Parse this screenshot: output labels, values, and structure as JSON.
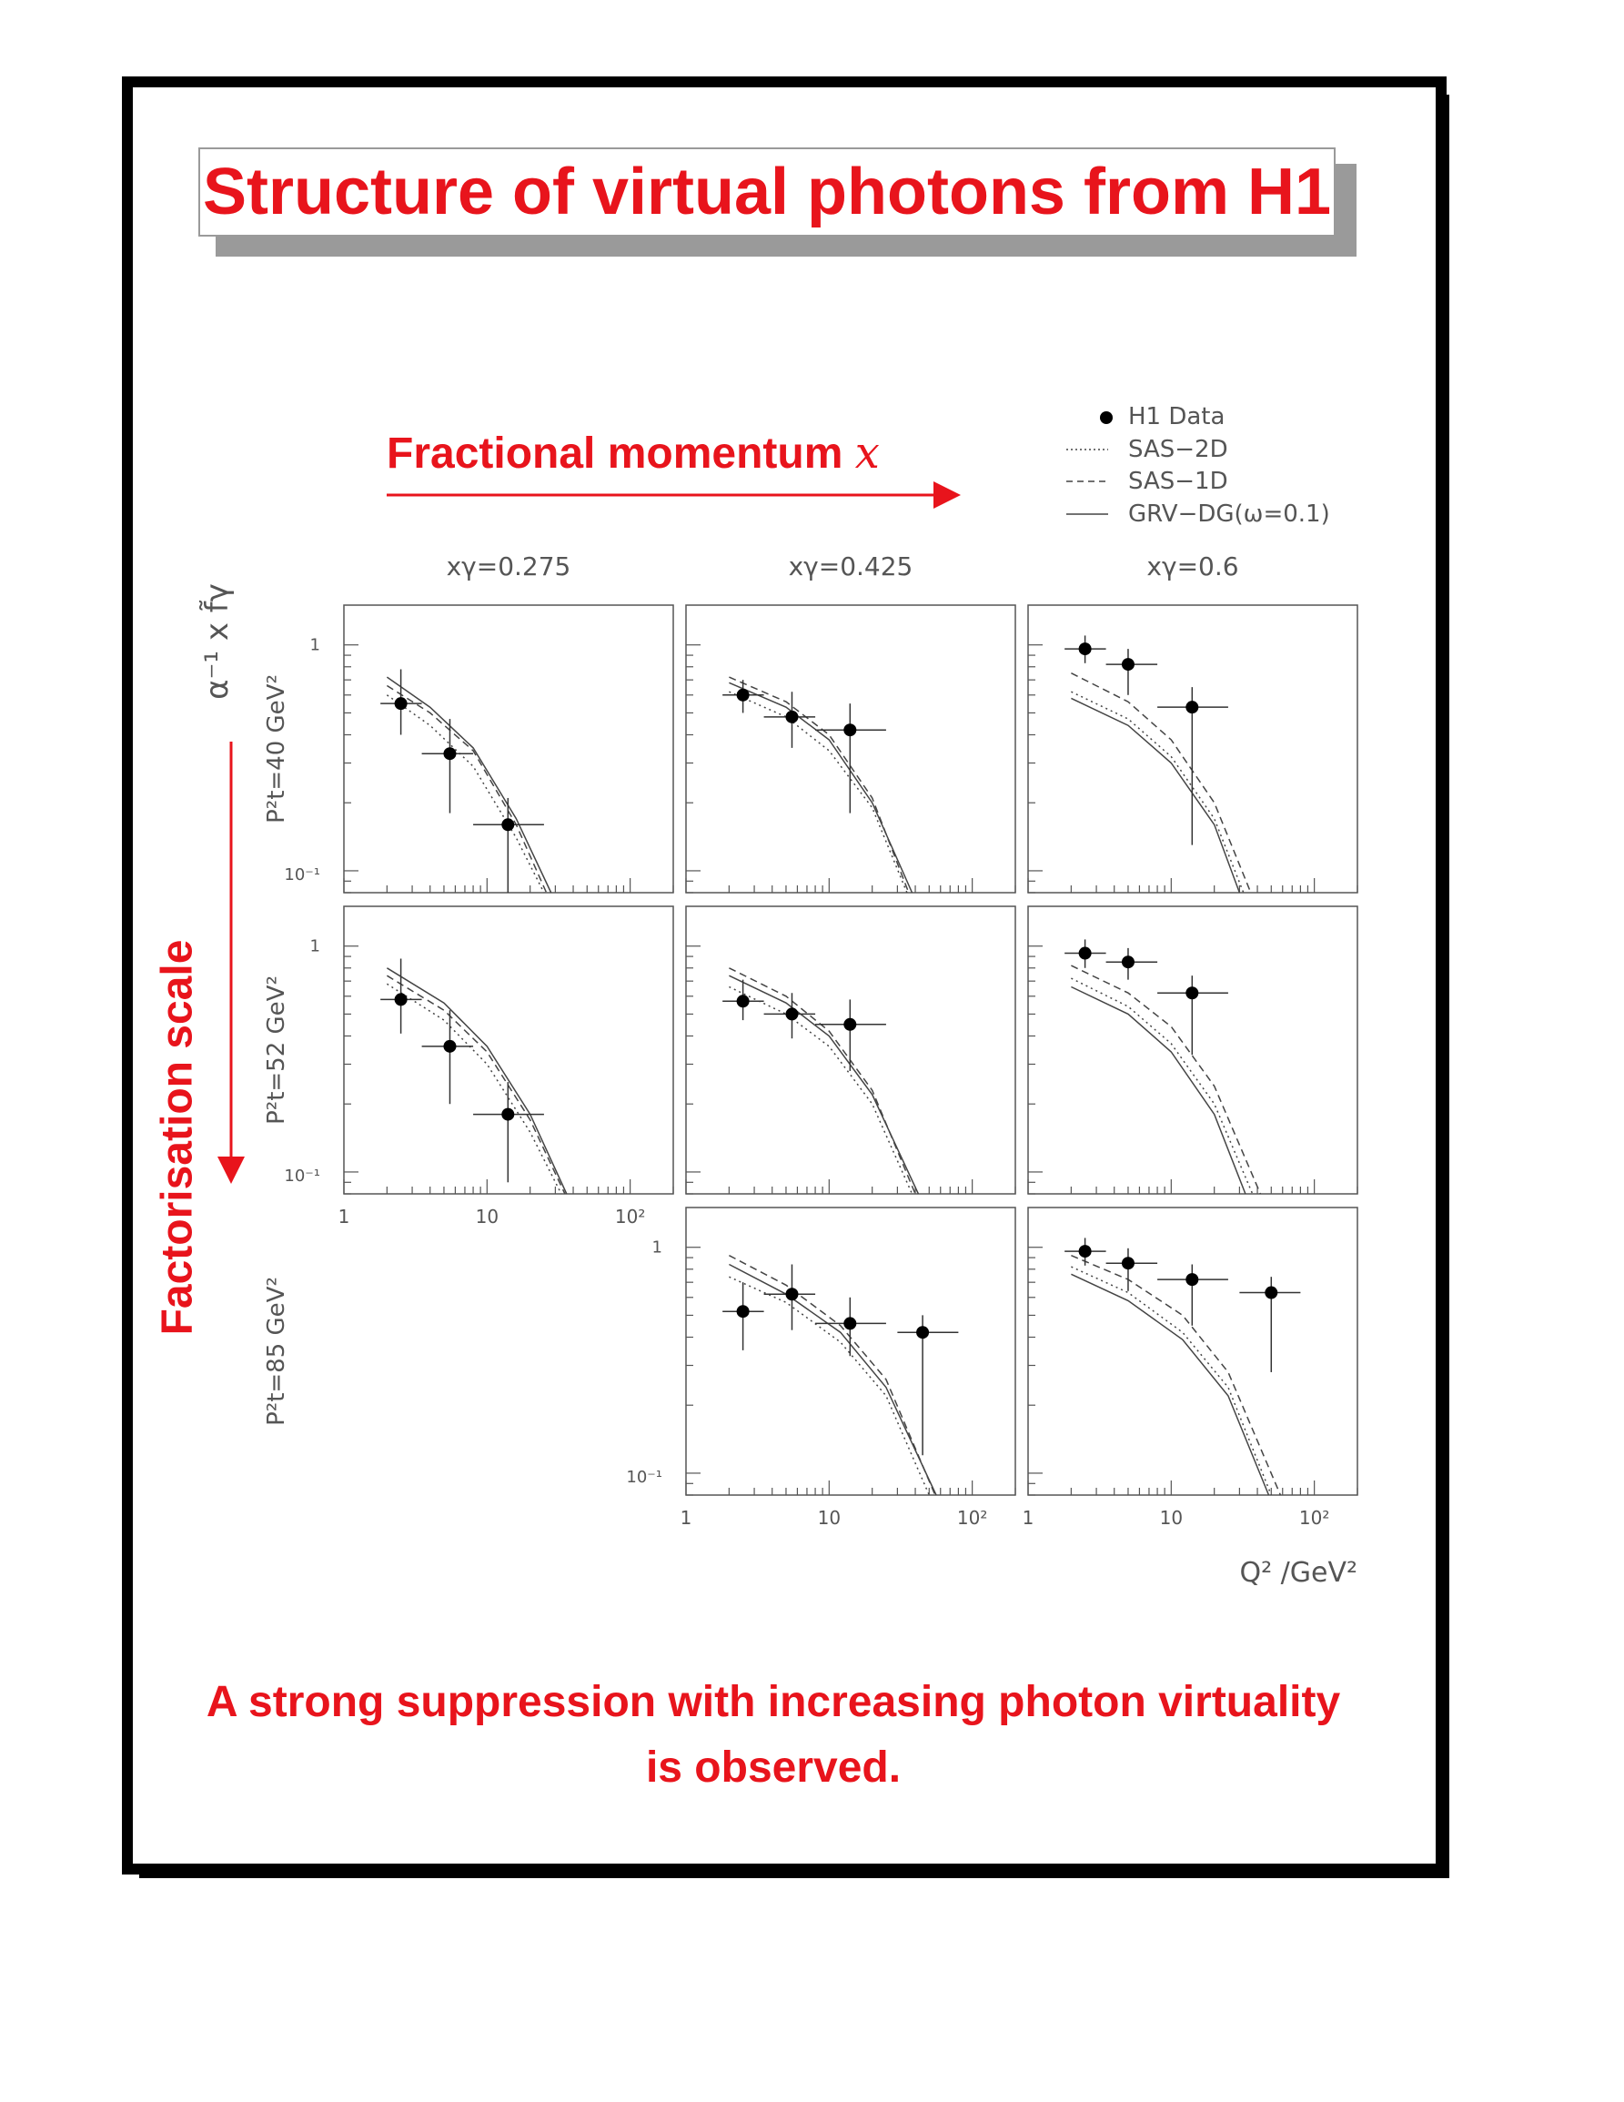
{
  "title": "Structure of virtual photons from H1",
  "x_direction_label": "Fractional momentum",
  "x_direction_symbol": "x",
  "y_direction_label": "Factorisation scale",
  "conclusion": [
    "A strong suppression with increasing photon virtuality",
    "is observed."
  ],
  "colors": {
    "accent": "#e8141c",
    "plot": "#555555"
  },
  "chart_data": {
    "type": "scatter",
    "y_axis_label": "α⁻¹ x f̃γ",
    "x_axis_label": "Q² /GeV²",
    "x_scale": "log",
    "y_scale": "log",
    "xlim": [
      1,
      200
    ],
    "ylim": [
      0.08,
      1.5
    ],
    "x_ticks": [
      "1",
      "10",
      "10²"
    ],
    "y_ticks": [
      "1",
      "10⁻¹"
    ],
    "columns": [
      "xγ=0.275",
      "xγ=0.425",
      "xγ=0.6"
    ],
    "rows": [
      "P²t=40 GeV²",
      "P²t=52 GeV²",
      "P²t=85 GeV²"
    ],
    "legend": {
      "placement": "top-right",
      "entries": [
        {
          "label": "H1 Data",
          "style": "point"
        },
        {
          "label": "SAS−2D",
          "style": "dotted"
        },
        {
          "label": "SAS−1D",
          "style": "dashed"
        },
        {
          "label": "GRV−DG(ω=0.1)",
          "style": "solid"
        }
      ]
    },
    "panels": [
      {
        "row": 0,
        "col": 0,
        "points": [
          {
            "x": 2.5,
            "y": 0.55,
            "xlo": 1.8,
            "xhi": 3.5,
            "ylo": 0.4,
            "yhi": 0.78
          },
          {
            "x": 5.5,
            "y": 0.33,
            "xlo": 3.5,
            "xhi": 8.0,
            "ylo": 0.18,
            "yhi": 0.47
          },
          {
            "x": 14,
            "y": 0.16,
            "xlo": 8.0,
            "xhi": 25,
            "ylo": 0.075,
            "yhi": 0.21
          }
        ],
        "curves": {
          "dotted": [
            [
              2,
              0.6
            ],
            [
              4,
              0.44
            ],
            [
              8,
              0.29
            ],
            [
              16,
              0.14
            ],
            [
              25,
              0.07
            ]
          ],
          "dashed": [
            [
              2,
              0.66
            ],
            [
              4,
              0.5
            ],
            [
              8,
              0.34
            ],
            [
              16,
              0.16
            ],
            [
              26,
              0.07
            ]
          ],
          "solid": [
            [
              2,
              0.72
            ],
            [
              4,
              0.53
            ],
            [
              8,
              0.35
            ],
            [
              16,
              0.17
            ],
            [
              28,
              0.07
            ]
          ]
        }
      },
      {
        "row": 0,
        "col": 1,
        "points": [
          {
            "x": 2.5,
            "y": 0.6,
            "xlo": 1.8,
            "xhi": 3.5,
            "ylo": 0.5,
            "yhi": 0.7
          },
          {
            "x": 5.5,
            "y": 0.48,
            "xlo": 3.5,
            "xhi": 8.0,
            "ylo": 0.35,
            "yhi": 0.62
          },
          {
            "x": 14,
            "y": 0.42,
            "xlo": 8.0,
            "xhi": 25,
            "ylo": 0.18,
            "yhi": 0.55
          }
        ],
        "curves": {
          "dotted": [
            [
              2,
              0.62
            ],
            [
              5,
              0.48
            ],
            [
              10,
              0.34
            ],
            [
              20,
              0.19
            ],
            [
              35,
              0.07
            ]
          ],
          "dashed": [
            [
              2,
              0.72
            ],
            [
              5,
              0.56
            ],
            [
              10,
              0.4
            ],
            [
              20,
              0.21
            ],
            [
              36,
              0.07
            ]
          ],
          "solid": [
            [
              2,
              0.68
            ],
            [
              5,
              0.53
            ],
            [
              10,
              0.38
            ],
            [
              20,
              0.2
            ],
            [
              38,
              0.07
            ]
          ]
        }
      },
      {
        "row": 0,
        "col": 2,
        "points": [
          {
            "x": 2.5,
            "y": 0.96,
            "xlo": 1.8,
            "xhi": 3.5,
            "ylo": 0.83,
            "yhi": 1.1
          },
          {
            "x": 5.0,
            "y": 0.82,
            "xlo": 3.5,
            "xhi": 8.0,
            "ylo": 0.6,
            "yhi": 0.96
          },
          {
            "x": 14,
            "y": 0.53,
            "xlo": 8.0,
            "xhi": 25,
            "ylo": 0.13,
            "yhi": 0.65
          }
        ],
        "curves": {
          "dotted": [
            [
              2,
              0.62
            ],
            [
              5,
              0.47
            ],
            [
              10,
              0.32
            ],
            [
              20,
              0.17
            ],
            [
              32,
              0.07
            ]
          ],
          "dashed": [
            [
              2,
              0.75
            ],
            [
              5,
              0.56
            ],
            [
              10,
              0.38
            ],
            [
              20,
              0.2
            ],
            [
              36,
              0.07
            ]
          ],
          "solid": [
            [
              2,
              0.58
            ],
            [
              5,
              0.44
            ],
            [
              10,
              0.3
            ],
            [
              20,
              0.16
            ],
            [
              30,
              0.07
            ]
          ]
        }
      },
      {
        "row": 1,
        "col": 0,
        "points": [
          {
            "x": 2.5,
            "y": 0.58,
            "xlo": 1.8,
            "xhi": 3.5,
            "ylo": 0.41,
            "yhi": 0.88
          },
          {
            "x": 5.5,
            "y": 0.36,
            "xlo": 3.5,
            "xhi": 8.0,
            "ylo": 0.2,
            "yhi": 0.52
          },
          {
            "x": 14,
            "y": 0.18,
            "xlo": 8.0,
            "xhi": 25,
            "ylo": 0.09,
            "yhi": 0.25
          }
        ],
        "curves": {
          "dotted": [
            [
              2,
              0.68
            ],
            [
              5,
              0.47
            ],
            [
              10,
              0.3
            ],
            [
              20,
              0.15
            ],
            [
              33,
              0.07
            ]
          ],
          "dashed": [
            [
              2,
              0.74
            ],
            [
              5,
              0.52
            ],
            [
              10,
              0.34
            ],
            [
              20,
              0.17
            ],
            [
              35,
              0.07
            ]
          ],
          "solid": [
            [
              2,
              0.8
            ],
            [
              5,
              0.56
            ],
            [
              10,
              0.36
            ],
            [
              20,
              0.18
            ],
            [
              36,
              0.07
            ]
          ]
        }
      },
      {
        "row": 1,
        "col": 1,
        "points": [
          {
            "x": 2.5,
            "y": 0.57,
            "xlo": 1.8,
            "xhi": 3.5,
            "ylo": 0.47,
            "yhi": 0.71
          },
          {
            "x": 5.5,
            "y": 0.5,
            "xlo": 3.5,
            "xhi": 8.0,
            "ylo": 0.39,
            "yhi": 0.62
          },
          {
            "x": 14,
            "y": 0.45,
            "xlo": 8.0,
            "xhi": 25,
            "ylo": 0.28,
            "yhi": 0.58
          }
        ],
        "curves": {
          "dotted": [
            [
              2,
              0.66
            ],
            [
              5,
              0.5
            ],
            [
              10,
              0.36
            ],
            [
              20,
              0.2
            ],
            [
              38,
              0.07
            ]
          ],
          "dashed": [
            [
              2,
              0.8
            ],
            [
              5,
              0.6
            ],
            [
              10,
              0.42
            ],
            [
              20,
              0.23
            ],
            [
              40,
              0.07
            ]
          ],
          "solid": [
            [
              2,
              0.74
            ],
            [
              5,
              0.56
            ],
            [
              10,
              0.4
            ],
            [
              20,
              0.22
            ],
            [
              42,
              0.07
            ]
          ]
        }
      },
      {
        "row": 1,
        "col": 2,
        "points": [
          {
            "x": 2.5,
            "y": 0.93,
            "xlo": 1.8,
            "xhi": 3.5,
            "ylo": 0.8,
            "yhi": 1.07
          },
          {
            "x": 5.0,
            "y": 0.85,
            "xlo": 3.5,
            "xhi": 8.0,
            "ylo": 0.71,
            "yhi": 0.98
          },
          {
            "x": 14,
            "y": 0.62,
            "xlo": 8.0,
            "xhi": 25,
            "ylo": 0.33,
            "yhi": 0.74
          }
        ],
        "curves": {
          "dotted": [
            [
              2,
              0.72
            ],
            [
              5,
              0.54
            ],
            [
              10,
              0.37
            ],
            [
              20,
              0.2
            ],
            [
              37,
              0.07
            ]
          ],
          "dashed": [
            [
              2,
              0.82
            ],
            [
              5,
              0.62
            ],
            [
              10,
              0.44
            ],
            [
              20,
              0.24
            ],
            [
              42,
              0.07
            ]
          ],
          "solid": [
            [
              2,
              0.66
            ],
            [
              5,
              0.5
            ],
            [
              10,
              0.34
            ],
            [
              20,
              0.18
            ],
            [
              33,
              0.07
            ]
          ]
        }
      },
      {
        "row": 2,
        "col": 1,
        "points": [
          {
            "x": 2.5,
            "y": 0.52,
            "xlo": 1.8,
            "xhi": 3.5,
            "ylo": 0.35,
            "yhi": 0.7
          },
          {
            "x": 5.5,
            "y": 0.62,
            "xlo": 3.5,
            "xhi": 8.0,
            "ylo": 0.43,
            "yhi": 0.84
          },
          {
            "x": 14,
            "y": 0.46,
            "xlo": 8.0,
            "xhi": 25,
            "ylo": 0.33,
            "yhi": 0.6
          },
          {
            "x": 45,
            "y": 0.42,
            "xlo": 30,
            "xhi": 80,
            "ylo": 0.12,
            "yhi": 0.5
          }
        ],
        "curves": {
          "dotted": [
            [
              2,
              0.74
            ],
            [
              5,
              0.57
            ],
            [
              12,
              0.38
            ],
            [
              25,
              0.22
            ],
            [
              50,
              0.07
            ]
          ],
          "dashed": [
            [
              2,
              0.92
            ],
            [
              5,
              0.68
            ],
            [
              12,
              0.45
            ],
            [
              25,
              0.26
            ],
            [
              55,
              0.07
            ]
          ],
          "solid": [
            [
              2,
              0.84
            ],
            [
              5,
              0.62
            ],
            [
              12,
              0.42
            ],
            [
              25,
              0.24
            ],
            [
              56,
              0.07
            ]
          ]
        }
      },
      {
        "row": 2,
        "col": 2,
        "points": [
          {
            "x": 2.5,
            "y": 0.96,
            "xlo": 1.8,
            "xhi": 3.5,
            "ylo": 0.83,
            "yhi": 1.1
          },
          {
            "x": 5.0,
            "y": 0.85,
            "xlo": 3.5,
            "xhi": 8.0,
            "ylo": 0.64,
            "yhi": 0.99
          },
          {
            "x": 14,
            "y": 0.72,
            "xlo": 8.0,
            "xhi": 25,
            "ylo": 0.45,
            "yhi": 0.84
          },
          {
            "x": 50,
            "y": 0.63,
            "xlo": 30,
            "xhi": 80,
            "ylo": 0.28,
            "yhi": 0.74
          }
        ],
        "curves": {
          "dotted": [
            [
              2,
              0.82
            ],
            [
              5,
              0.63
            ],
            [
              12,
              0.42
            ],
            [
              25,
              0.24
            ],
            [
              50,
              0.07
            ]
          ],
          "dashed": [
            [
              2,
              0.92
            ],
            [
              5,
              0.72
            ],
            [
              12,
              0.5
            ],
            [
              25,
              0.28
            ],
            [
              58,
              0.07
            ]
          ],
          "solid": [
            [
              2,
              0.76
            ],
            [
              5,
              0.58
            ],
            [
              12,
              0.39
            ],
            [
              25,
              0.22
            ],
            [
              48,
              0.07
            ]
          ]
        }
      }
    ]
  }
}
